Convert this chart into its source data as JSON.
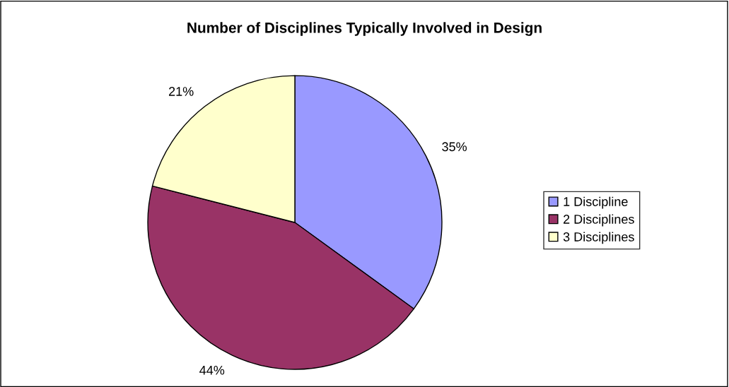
{
  "chart_data": {
    "type": "pie",
    "title": "Number of Disciplines Typically Involved in Design",
    "categories": [
      "1 Discipline",
      "2 Disciplines",
      "3 Disciplines"
    ],
    "values": [
      35,
      44,
      21
    ],
    "colors": [
      "#9999ff",
      "#993366",
      "#ffffcc"
    ],
    "value_labels": [
      "35%",
      "44%",
      "21%"
    ],
    "legend": "right"
  }
}
